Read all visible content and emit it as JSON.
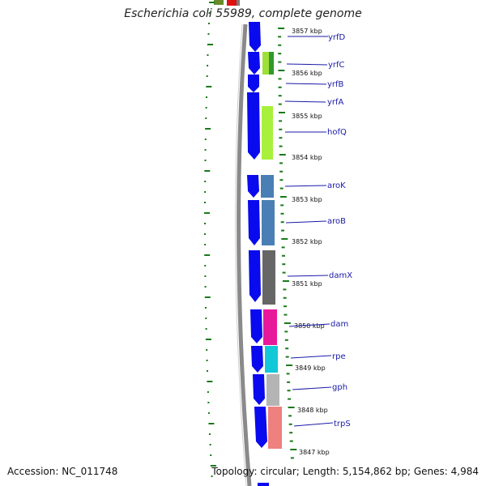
{
  "title": "Escherichia coli 55989, complete genome",
  "accession": "Accession: NC_011748",
  "topology": "Topology: circular; Length: 5,154,862 bp; Genes: 4,984",
  "kbp_labels": [
    "3857 kbp",
    "3856 kbp",
    "3855 kbp",
    "3854 kbp",
    "3853 kbp",
    "3852 kbp",
    "3851 kbp",
    "3850 kbp",
    "3849 kbp",
    "3848 kbp",
    "3847 kbp"
  ],
  "genes": [
    "yrfD",
    "yrfC",
    "yrfB",
    "yrfA",
    "hofQ",
    "aroK",
    "aroB",
    "damX",
    "dam",
    "rpe",
    "gph",
    "trpS"
  ],
  "colors": {
    "backbone": "#888888",
    "cds": "#0a0aee",
    "ticks": "#1a7a1a",
    "gene_label": "#1a1aa8",
    "cog_green": "#9ee03a",
    "cog_steelblue": "#4a7fb5",
    "cog_gray": "#666666",
    "cog_magenta": "#e8189a",
    "cog_cyan": "#12c8d8",
    "cog_lightgray": "#b4b4b4",
    "cog_salmon": "#ee8080"
  }
}
